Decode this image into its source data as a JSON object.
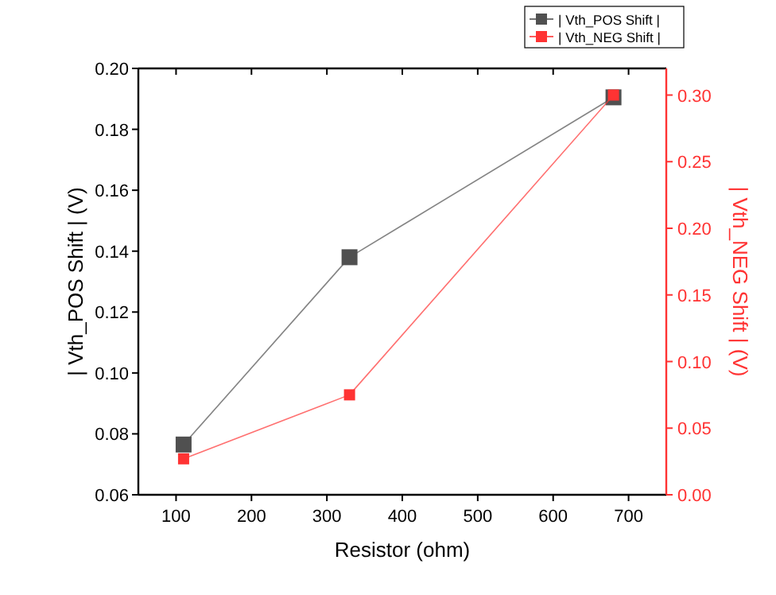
{
  "chart_data": {
    "type": "line",
    "xlabel": "Resistor (ohm)",
    "ylabel": "| Vth_POS Shift | (V)",
    "y2label": "| Vth_NEG Shift | (V)",
    "x": [
      110,
      330,
      680
    ],
    "series": [
      {
        "name": "| Vth_POS Shift |",
        "color": "#505050",
        "values": [
          0.0765,
          0.138,
          0.1905
        ]
      },
      {
        "name": "| Vth_NEG Shift |",
        "color": "#ff3333",
        "axis": "y2",
        "values": [
          0.027,
          0.075,
          0.3
        ]
      }
    ],
    "xlim": [
      50,
      750
    ],
    "xticks": [
      100,
      200,
      300,
      400,
      500,
      600,
      700
    ],
    "ylim": [
      0.06,
      0.2
    ],
    "yticks": [
      {
        "value": 0.06,
        "label": "0.06"
      },
      {
        "value": 0.08,
        "label": "0.08"
      },
      {
        "value": 0.1,
        "label": "0.10"
      },
      {
        "value": 0.12,
        "label": "0.12"
      },
      {
        "value": 0.14,
        "label": "0.14"
      },
      {
        "value": 0.16,
        "label": "0.16"
      },
      {
        "value": 0.18,
        "label": "0.18"
      },
      {
        "value": 0.2,
        "label": "0.20"
      }
    ],
    "y2lim": [
      0,
      0.32
    ],
    "y2ticks": [
      {
        "value": 0,
        "label": "0.00"
      },
      {
        "value": 0.05,
        "label": "0.05"
      },
      {
        "value": 0.1,
        "label": "0.10"
      },
      {
        "value": 0.15,
        "label": "0.15"
      },
      {
        "value": 0.2,
        "label": "0.20"
      },
      {
        "value": 0.25,
        "label": "0.25"
      },
      {
        "value": 0.3,
        "label": "0.30"
      }
    ],
    "marker": "square",
    "legend": "top right",
    "grid": false
  }
}
